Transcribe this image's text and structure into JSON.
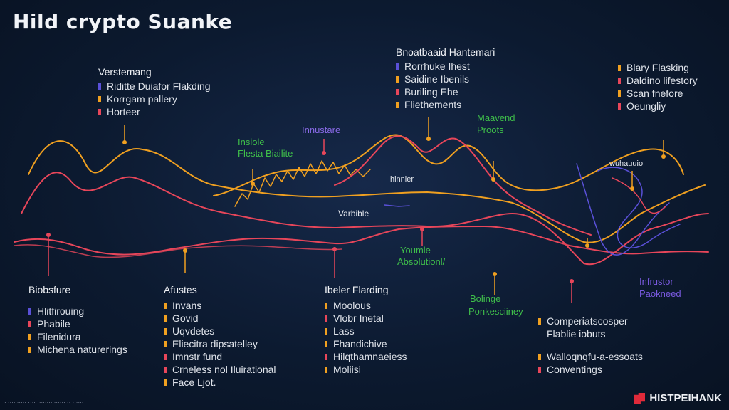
{
  "title": "Hild crypto Suanke",
  "colors": {
    "orange": "#f0a020",
    "red": "#e8465a",
    "purple": "#5a50d8",
    "green": "#3fbf4a",
    "white": "#e6e9ef"
  },
  "legend_top_left": {
    "header": "Verstemang",
    "items": [
      {
        "label": "Riditte Duiafor Flakding",
        "color": "#5a50d8"
      },
      {
        "label": "Korrgam pallery",
        "color": "#f0a020"
      },
      {
        "label": "Horteer",
        "color": "#e8465a"
      }
    ]
  },
  "legend_top_center": {
    "header": "Bnoatbaaid Hantemari",
    "items": [
      {
        "label": "Rorrhuke Ihest",
        "color": "#5a50d8"
      },
      {
        "label": "Saidine Ibenils",
        "color": "#f0a020"
      },
      {
        "label": "Buriling Ehe",
        "color": "#e8465a"
      },
      {
        "label": "Fliethements",
        "color": "#f0a020"
      }
    ]
  },
  "legend_top_right": {
    "items": [
      {
        "label": "Blary Flasking",
        "color": "#f0a020"
      },
      {
        "label": "Daldino lifestory",
        "color": "#e8465a"
      },
      {
        "label": "Scan fnefore",
        "color": "#f0a020"
      },
      {
        "label": "Oeungliy",
        "color": "#e8465a"
      }
    ]
  },
  "legend_bottom_1": {
    "header": "Biobsfure",
    "items": [
      {
        "label": "Hlitfirouing",
        "color": "#5a50d8"
      },
      {
        "label": "Phabile",
        "color": "#e8465a"
      },
      {
        "label": "Filenidura",
        "color": "#f0a020"
      },
      {
        "label": "Michena naturerings",
        "color": "#f0a020"
      }
    ]
  },
  "legend_bottom_2": {
    "header": "Afustes",
    "items": [
      {
        "label": "Invans",
        "color": "#f0a020"
      },
      {
        "label": "Govid",
        "color": "#f0a020"
      },
      {
        "label": "Uqvdetes",
        "color": "#f0a020"
      },
      {
        "label": "Eliecitra dipsatelley",
        "color": "#f0a020"
      },
      {
        "label": "Imnstr fund",
        "color": "#e8465a"
      },
      {
        "label": "Crneless nol Iluirational",
        "color": "#e8465a"
      },
      {
        "label": "Face Ljot.",
        "color": "#f0a020"
      }
    ]
  },
  "legend_bottom_3": {
    "header": "Ibeler Flarding",
    "items": [
      {
        "label": "Moolous",
        "color": "#f0a020"
      },
      {
        "label": "Vlobr Inetal",
        "color": "#e8465a"
      },
      {
        "label": "Lass",
        "color": "#f0a020"
      },
      {
        "label": "Fhandichive",
        "color": "#f0a020"
      },
      {
        "label": "Hilqthamnaeiess",
        "color": "#e8465a"
      },
      {
        "label": "Moliisi",
        "color": "#f0a020"
      }
    ]
  },
  "legend_bottom_4": {
    "items": [
      {
        "label": "Comperiatscosper",
        "color": "#f0a020"
      },
      {
        "label": "Flablie iobuts",
        "color": ""
      },
      {
        "label": "Walloqnqfu-a-essoats",
        "color": "#f0a020"
      },
      {
        "label": "Conventings",
        "color": "#e8465a"
      }
    ]
  },
  "annotations": {
    "insiole": "Insiole",
    "flesta": "Flesta Biailite",
    "innustare": "Innustare",
    "maavend": "Maavend",
    "proots": "Proots",
    "hinnier": "hinnier",
    "wuhauuio": "wuhauuio",
    "varbible": "Varbible",
    "youmle": "Youmle",
    "absolution": "Absolutionl/",
    "bolinge": "Bolinge",
    "ponkesciiney": "Ponkesciiney",
    "infrustor": "Infrustor",
    "paokneed": "Paokneed"
  },
  "watermark": "HISTPEIHANK",
  "footnote": "· ···· ·····  ···· ········ ······ ·· ······"
}
